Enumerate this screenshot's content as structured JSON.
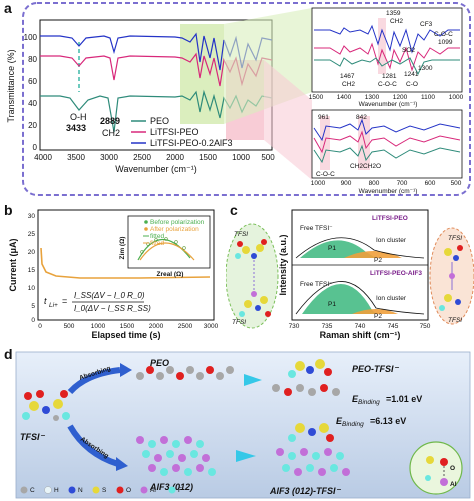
{
  "panel_a": {
    "letter": "a",
    "ylabel": "Transmittance (%)",
    "xlabel": "Wavenumber (cm⁻¹)",
    "yticks": [
      "100",
      "80",
      "60",
      "40",
      "20",
      "0"
    ],
    "xticks": [
      "4000",
      "3500",
      "3000",
      "2500",
      "2000",
      "1500",
      "1000",
      "500"
    ],
    "annot_oh": "O-H",
    "annot_oh_val": "3433",
    "annot_ch2": "2889",
    "annot_ch2_sub": "CH2",
    "legend": [
      "PEO",
      "LiTFSI-PEO",
      "LiTFSI-PEO-0.2AlF3"
    ],
    "inset1": {
      "xlabel": "Wavenumber (cm⁻¹)",
      "xticks": [
        "1500",
        "1400",
        "1300",
        "1200",
        "1100",
        "1000"
      ],
      "labels": [
        "1359",
        "CH2",
        "CF3",
        "C-O-C",
        "1099",
        "SO2",
        "1467",
        "CH2",
        "1281",
        "1241",
        "C-O-C",
        "C-O",
        "1300"
      ]
    },
    "inset2": {
      "xlabel": "Wavenumber (cm⁻¹)",
      "xticks": [
        "1000",
        "900",
        "800",
        "700",
        "600",
        "500"
      ],
      "labels": [
        "961",
        "842",
        "C-O-C",
        "CH2CH2O"
      ]
    }
  },
  "panel_b": {
    "letter": "b",
    "ylabel": "Current (μA)",
    "xlabel": "Elapsed time (s)",
    "xticks": [
      "0",
      "500",
      "1000",
      "1500",
      "2000",
      "2500",
      "3000"
    ],
    "yticks": [
      "30",
      "25",
      "20",
      "15",
      "10",
      "5",
      "0"
    ],
    "legend": [
      "Before polarization",
      "After polarization",
      "fitted",
      "fitted"
    ],
    "inset_y": "Zim (Ω)",
    "inset_x": "Zreal (Ω)",
    "formula_lhs": "t",
    "formula_sub": "Li+",
    "formula_eq": "=",
    "formula_num": "I_SS(ΔV − I_0 R_0)",
    "formula_den": "I_0(ΔV − I_SS R_SS)"
  },
  "panel_c": {
    "letter": "c",
    "ylabel": "Intensity (a.u.)",
    "xlabel": "Raman shift (cm⁻¹)",
    "xticks": [
      "730",
      "735",
      "740",
      "745",
      "750"
    ],
    "top": {
      "title": "LiTFSI-PEO",
      "free": "Free TFSI⁻",
      "p1": "P1",
      "ion": "Ion cluster",
      "p2": "P2"
    },
    "bottom": {
      "title": "LiTFSI-PEO-AlF3",
      "free": "Free TFSI⁻",
      "p1": "P1",
      "ion": "Ion cluster",
      "p2": "P2"
    },
    "mol_labels": [
      "TFSI",
      "TFSI",
      "TFSI",
      "TFSI"
    ]
  },
  "panel_d": {
    "letter": "d",
    "tfsi": "TFSI⁻",
    "absorbing1": "Absorbing",
    "absorbing2": "Absorbing",
    "peo": "PEO",
    "peo_tfsi": "PEO-TFSI⁻",
    "alf3": "AlF3 (012)",
    "alf3_tfsi": "AlF3 (012)-TFSI⁻",
    "e_label": "E",
    "e_sub": "Binding",
    "e1": "=1.01 eV",
    "e2": "=6.13 eV",
    "atom_labels": [
      "O",
      "Al"
    ],
    "legend": [
      {
        "sym": "C",
        "color": "#a7a7a7"
      },
      {
        "sym": "H",
        "color": "#e8f4f8"
      },
      {
        "sym": "N",
        "color": "#2f4bd6"
      },
      {
        "sym": "S",
        "color": "#e6d83a"
      },
      {
        "sym": "O",
        "color": "#e02020"
      },
      {
        "sym": "Al",
        "color": "#c26fd8"
      },
      {
        "sym": "F",
        "color": "#69e7e0"
      }
    ]
  },
  "colors": {
    "peo": "#2e8b7a",
    "litfsi_peo": "#d8287a",
    "alf3": "#2433c7",
    "frame": "#7b6fd0"
  }
}
